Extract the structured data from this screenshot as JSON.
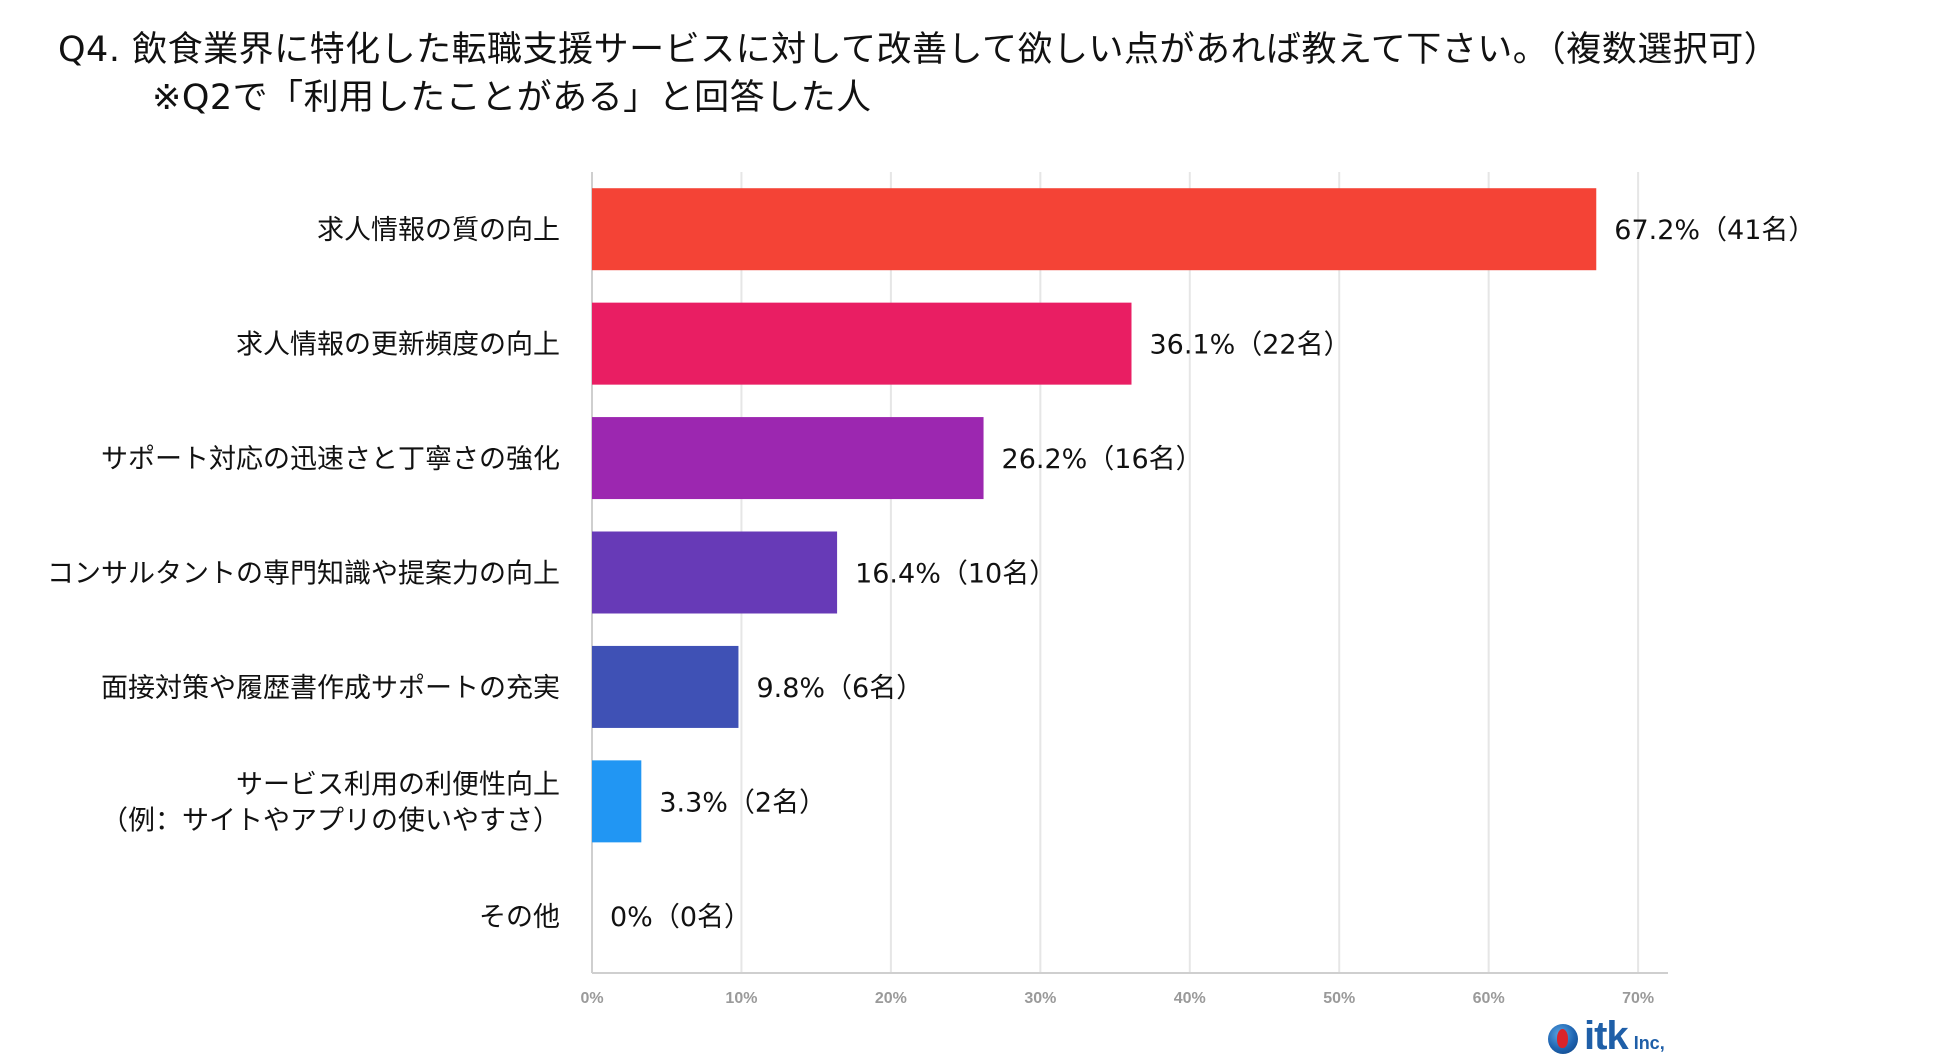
{
  "title": {
    "line1": "Q4. 飲食業界に特化した転職支援サービスに対して改善して欲しい点があれば教えて下さい。（複数選択可）",
    "line2": "※Q2で「利用したことがある」と回答した人"
  },
  "chart_data": {
    "type": "bar",
    "orientation": "horizontal",
    "categories": [
      [
        "求人情報の質の向上"
      ],
      [
        "求人情報の更新頻度の向上"
      ],
      [
        "サポート対応の迅速さと丁寧さの強化"
      ],
      [
        "コンサルタントの専門知識や提案力の向上"
      ],
      [
        "面接対策や履歴書作成サポートの充実"
      ],
      [
        "サービス利用の利便性向上",
        "（例：サイトやアプリの使いやすさ）"
      ],
      [
        "その他"
      ]
    ],
    "values": [
      67.2,
      36.1,
      26.2,
      16.4,
      9.8,
      3.3,
      0
    ],
    "counts": [
      41,
      22,
      16,
      10,
      6,
      2,
      0
    ],
    "value_labels": [
      "67.2%（41名）",
      "36.1%（22名）",
      "26.2%（16名）",
      "16.4%（10名）",
      "9.8%（6名）",
      "3.3%（2名）",
      "0%（0名）"
    ],
    "colors": [
      "#f44336",
      "#e91e63",
      "#9c27b0",
      "#673ab7",
      "#3f51b5",
      "#2196f3",
      "#03a9f4"
    ],
    "xlim": [
      0,
      72
    ],
    "xticks": [
      0,
      10,
      20,
      30,
      40,
      50,
      60,
      70
    ],
    "xtick_labels": [
      "0%",
      "10%",
      "20%",
      "30%",
      "40%",
      "50%",
      "60%",
      "70%"
    ],
    "grid": true,
    "legend": "none",
    "xlabel": "",
    "ylabel": ""
  },
  "logo": {
    "text": "itk",
    "suffix": "Inc,"
  }
}
